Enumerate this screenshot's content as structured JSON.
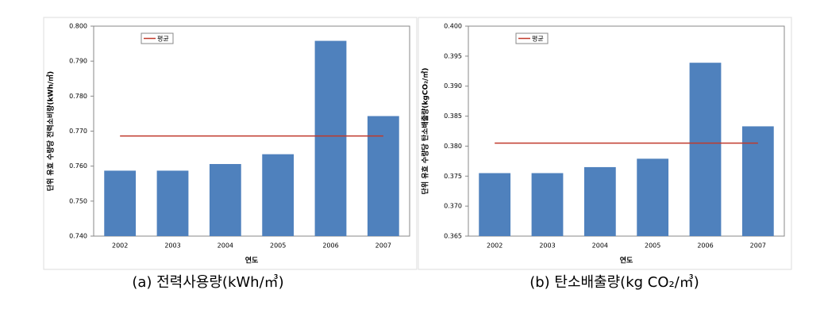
{
  "chart_data": [
    {
      "type": "bar",
      "y_label": "단위 유효 수량당 전력소비량(kWh/㎥)",
      "x_label": "연도",
      "caption": "(a)  전력사용량(kWh/㎥)",
      "categories": [
        "2002",
        "2003",
        "2004",
        "2005",
        "2006",
        "2007"
      ],
      "values": [
        0.7587,
        0.7587,
        0.7606,
        0.7634,
        0.7958,
        0.7743
      ],
      "color": "#4f81bd",
      "average_line": {
        "name": "평균",
        "value": 0.7686,
        "color": "#c0392b"
      },
      "ylim": [
        0.74,
        0.8
      ],
      "yticks": [
        {
          "value": 0.74,
          "label": "0.740"
        },
        {
          "value": 0.75,
          "label": "0.750"
        },
        {
          "value": 0.76,
          "label": "0.760"
        },
        {
          "value": 0.77,
          "label": "0.770"
        },
        {
          "value": 0.78,
          "label": "0.780"
        },
        {
          "value": 0.79,
          "label": "0.790"
        },
        {
          "value": 0.8,
          "label": "0.800"
        }
      ]
    },
    {
      "type": "bar",
      "y_label": "단위 유효 수량당 탄소배출량(kgCO₂/㎥)",
      "x_label": "연도",
      "caption": "(b)  탄소배출량(kg CO₂/㎥)",
      "categories": [
        "2002",
        "2003",
        "2004",
        "2005",
        "2006",
        "2007"
      ],
      "values": [
        0.3755,
        0.3755,
        0.3765,
        0.3779,
        0.3939,
        0.3833
      ],
      "color": "#4f81bd",
      "average_line": {
        "name": "평균",
        "value": 0.3805,
        "color": "#c0392b"
      },
      "ylim": [
        0.365,
        0.4
      ],
      "yticks": [
        {
          "value": 0.365,
          "label": "0.365"
        },
        {
          "value": 0.37,
          "label": "0.370"
        },
        {
          "value": 0.375,
          "label": "0.375"
        },
        {
          "value": 0.38,
          "label": "0.380"
        },
        {
          "value": 0.385,
          "label": "0.385"
        },
        {
          "value": 0.39,
          "label": "0.390"
        },
        {
          "value": 0.395,
          "label": "0.395"
        },
        {
          "value": 0.4,
          "label": "0.400"
        }
      ]
    }
  ]
}
